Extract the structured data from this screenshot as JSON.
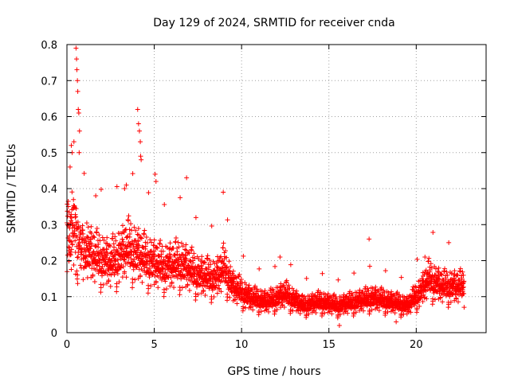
{
  "chart_data": {
    "type": "scatter",
    "title": "Day 129 of 2024, SRMTID for receiver cnda",
    "xlabel": "GPS time / hours",
    "ylabel": "SRMTID / TECUs",
    "xlim": [
      0,
      24
    ],
    "ylim": [
      0,
      0.8
    ],
    "xticks": [
      0,
      5,
      10,
      15,
      20
    ],
    "yticks": [
      0,
      0.1,
      0.2,
      0.3,
      0.4,
      0.5,
      0.6,
      0.7,
      0.8
    ],
    "xtick_labels": [
      "0",
      "5",
      "10",
      "15",
      "20"
    ],
    "ytick_labels": [
      "0",
      "0.1",
      "0.2",
      "0.3",
      "0.4",
      "0.5",
      "0.6",
      "0.7",
      "0.8"
    ],
    "grid": true,
    "marker": "+",
    "series": [
      {
        "name": "SRMTID",
        "color": "#ff0000",
        "x_range": [
          0.0,
          22.75
        ],
        "step_hours": 0.0083,
        "trend_knots": [
          [
            0.0,
            0.26
          ],
          [
            0.3,
            0.3
          ],
          [
            0.7,
            0.24
          ],
          [
            1.5,
            0.2
          ],
          [
            2.5,
            0.18
          ],
          [
            3.5,
            0.22
          ],
          [
            4.5,
            0.19
          ],
          [
            5.5,
            0.17
          ],
          [
            6.5,
            0.18
          ],
          [
            7.5,
            0.15
          ],
          [
            8.5,
            0.14
          ],
          [
            9.0,
            0.17
          ],
          [
            9.5,
            0.12
          ],
          [
            10.5,
            0.09
          ],
          [
            11.5,
            0.08
          ],
          [
            12.5,
            0.1
          ],
          [
            13.5,
            0.07
          ],
          [
            14.5,
            0.08
          ],
          [
            15.5,
            0.07
          ],
          [
            16.5,
            0.08
          ],
          [
            17.5,
            0.09
          ],
          [
            18.5,
            0.08
          ],
          [
            19.5,
            0.07
          ],
          [
            20.3,
            0.11
          ],
          [
            20.7,
            0.14
          ],
          [
            21.5,
            0.12
          ],
          [
            22.75,
            0.12
          ]
        ],
        "notable_points": [
          [
            0.52,
            0.79
          ],
          [
            0.55,
            0.76
          ],
          [
            0.57,
            0.73
          ],
          [
            0.6,
            0.7
          ],
          [
            0.62,
            0.67
          ],
          [
            0.65,
            0.62
          ],
          [
            0.68,
            0.61
          ],
          [
            0.4,
            0.53
          ],
          [
            0.25,
            0.52
          ],
          [
            0.3,
            0.5
          ],
          [
            0.7,
            0.5
          ],
          [
            0.72,
            0.56
          ],
          [
            0.18,
            0.46
          ],
          [
            4.05,
            0.62
          ],
          [
            4.1,
            0.58
          ],
          [
            4.15,
            0.56
          ],
          [
            4.2,
            0.53
          ],
          [
            4.22,
            0.49
          ],
          [
            4.25,
            0.48
          ],
          [
            5.05,
            0.44
          ],
          [
            5.1,
            0.42
          ],
          [
            3.3,
            0.4
          ],
          [
            3.4,
            0.41
          ],
          [
            6.85,
            0.43
          ],
          [
            8.95,
            0.39
          ],
          [
            1.65,
            0.38
          ],
          [
            17.3,
            0.26
          ],
          [
            12.2,
            0.21
          ],
          [
            20.5,
            0.21
          ],
          [
            15.6,
            0.02
          ],
          [
            18.85,
            0.03
          ]
        ]
      }
    ]
  }
}
